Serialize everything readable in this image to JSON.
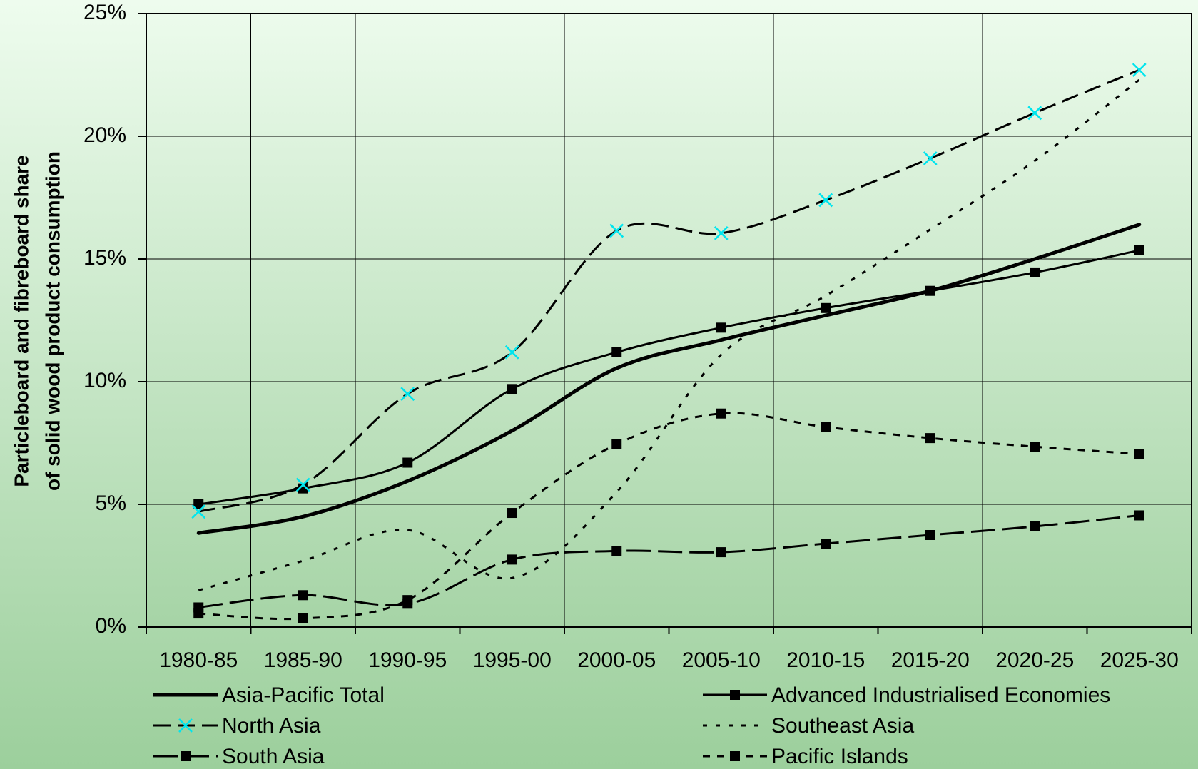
{
  "chart_data": {
    "type": "line",
    "y_label": [
      "Particleboard and fibreboard share",
      "of solid wood product consumption"
    ],
    "categories": [
      "1980-85",
      "1985-90",
      "1990-95",
      "1995-00",
      "2000-05",
      "2005-10",
      "2010-15",
      "2015-20",
      "2020-25",
      "2025-30"
    ],
    "ylim": [
      0,
      25
    ],
    "yticks": [
      {
        "value": 0,
        "label": "0%"
      },
      {
        "value": 5,
        "label": "5%"
      },
      {
        "value": 10,
        "label": "10%"
      },
      {
        "value": 15,
        "label": "15%"
      },
      {
        "value": 20,
        "label": "20%"
      },
      {
        "value": 25,
        "label": "25%"
      }
    ],
    "grid": true,
    "legend": "bottom",
    "series": [
      {
        "name": "Asia-Pacific Total",
        "color": "#000000",
        "style": "solid",
        "width": 5,
        "marker": "none",
        "values": [
          3.83,
          4.5,
          5.95,
          8.0,
          10.55,
          11.7,
          12.7,
          13.7,
          15.0,
          16.4
        ]
      },
      {
        "name": "Advanced Industrialised Economies",
        "color": "#000000",
        "style": "solid",
        "width": 3,
        "marker": "square",
        "values": [
          5.0,
          5.65,
          6.7,
          9.7,
          11.2,
          12.2,
          13.0,
          13.7,
          14.45,
          15.35
        ]
      },
      {
        "name": "North Asia",
        "color": "#000000",
        "style": "dashed",
        "width": 3,
        "marker": "x",
        "marker_color": "#00e5ee",
        "values": [
          4.7,
          5.8,
          9.5,
          11.2,
          16.15,
          16.05,
          17.4,
          19.1,
          20.95,
          22.7
        ]
      },
      {
        "name": "Southeast Asia",
        "color": "#000000",
        "style": "dotted",
        "width": 3,
        "marker": "none",
        "values": [
          1.5,
          2.7,
          3.95,
          2.0,
          5.5,
          11.1,
          13.5,
          16.2,
          19.0,
          22.3
        ]
      },
      {
        "name": "South Asia",
        "color": "#000000",
        "style": "longdash",
        "width": 3,
        "marker": "square",
        "values": [
          0.8,
          1.3,
          0.95,
          2.75,
          3.1,
          3.05,
          3.4,
          3.75,
          4.1,
          4.55
        ]
      },
      {
        "name": "Pacific Islands",
        "color": "#000000",
        "style": "shortdash",
        "width": 3,
        "marker": "square",
        "values": [
          0.55,
          0.35,
          1.1,
          4.65,
          7.45,
          8.7,
          8.15,
          7.7,
          7.35,
          7.05
        ]
      }
    ]
  }
}
